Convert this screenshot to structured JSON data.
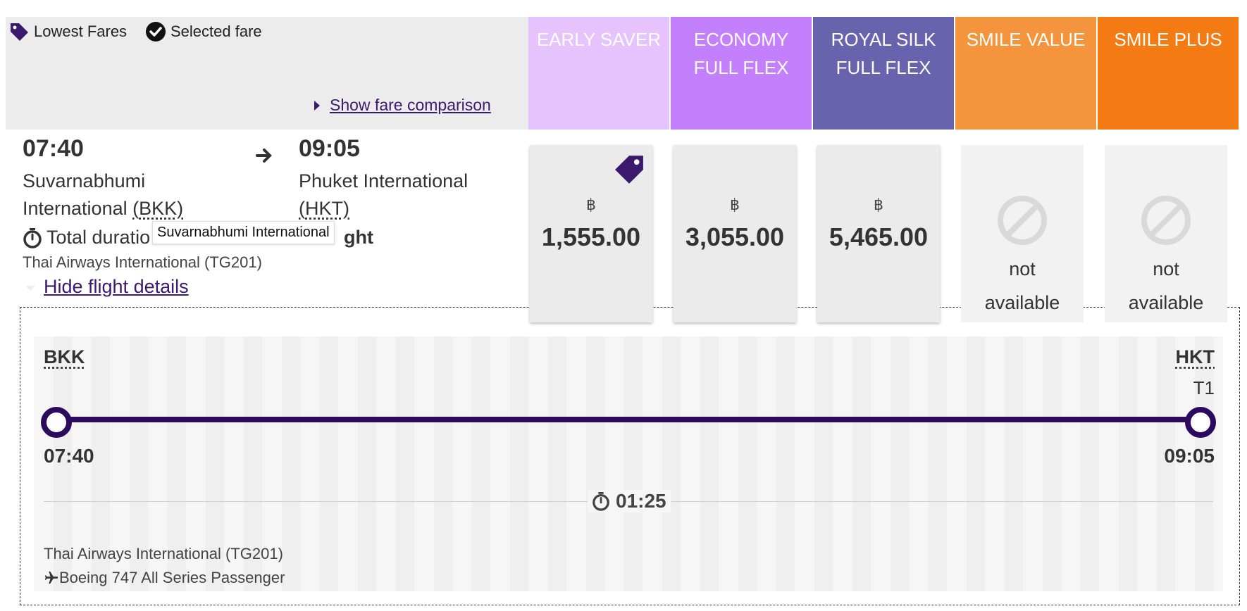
{
  "legend": {
    "lowest_fares": "Lowest Fares",
    "selected_fare": "Selected fare",
    "show_fare_comparison": "Show fare comparison"
  },
  "fare_columns": [
    {
      "label": "EARLY SAVER",
      "color": "#e6c3fd"
    },
    {
      "label": "ECONOMY FULL FLEX",
      "color": "#c47ffc"
    },
    {
      "label": "ROYAL SILK FULL FLEX",
      "color": "#6963ad"
    },
    {
      "label": "SMILE VALUE",
      "color": "#f4953e"
    },
    {
      "label": "SMILE PLUS",
      "color": "#f47a14"
    }
  ],
  "flight": {
    "depart_time": "07:40",
    "depart_airport": "Suvarnabhumi International",
    "depart_code": "BKK",
    "arrive_time": "09:05",
    "arrive_airport": "Phuket International",
    "arrive_code": "HKT",
    "total_duration_left": "Total duratio",
    "total_duration_right": "ght",
    "airline": "Thai Airways International (TG201)",
    "hide_details": "Hide flight details",
    "tooltip": "Suvarnabhumi International"
  },
  "prices": [
    {
      "currency": "฿",
      "amount": "1,555.00",
      "lowest": true
    },
    {
      "currency": "฿",
      "amount": "3,055.00"
    },
    {
      "currency": "฿",
      "amount": "5,465.00"
    }
  ],
  "unavailable": [
    {
      "line1": "not",
      "line2": "available"
    },
    {
      "line1": "not",
      "line2": "available"
    }
  ],
  "details": {
    "origin_code": "BKK",
    "dest_code": "HKT",
    "dest_terminal": "T1",
    "depart_time": "07:40",
    "arrive_time": "09:05",
    "duration": "01:25",
    "airline": "Thai Airways International (TG201)",
    "aircraft": "Boeing 747 All Series Passenger"
  },
  "colors": {
    "brand_purple": "#2e0a5e",
    "tag_purple": "#3b1a6e"
  }
}
